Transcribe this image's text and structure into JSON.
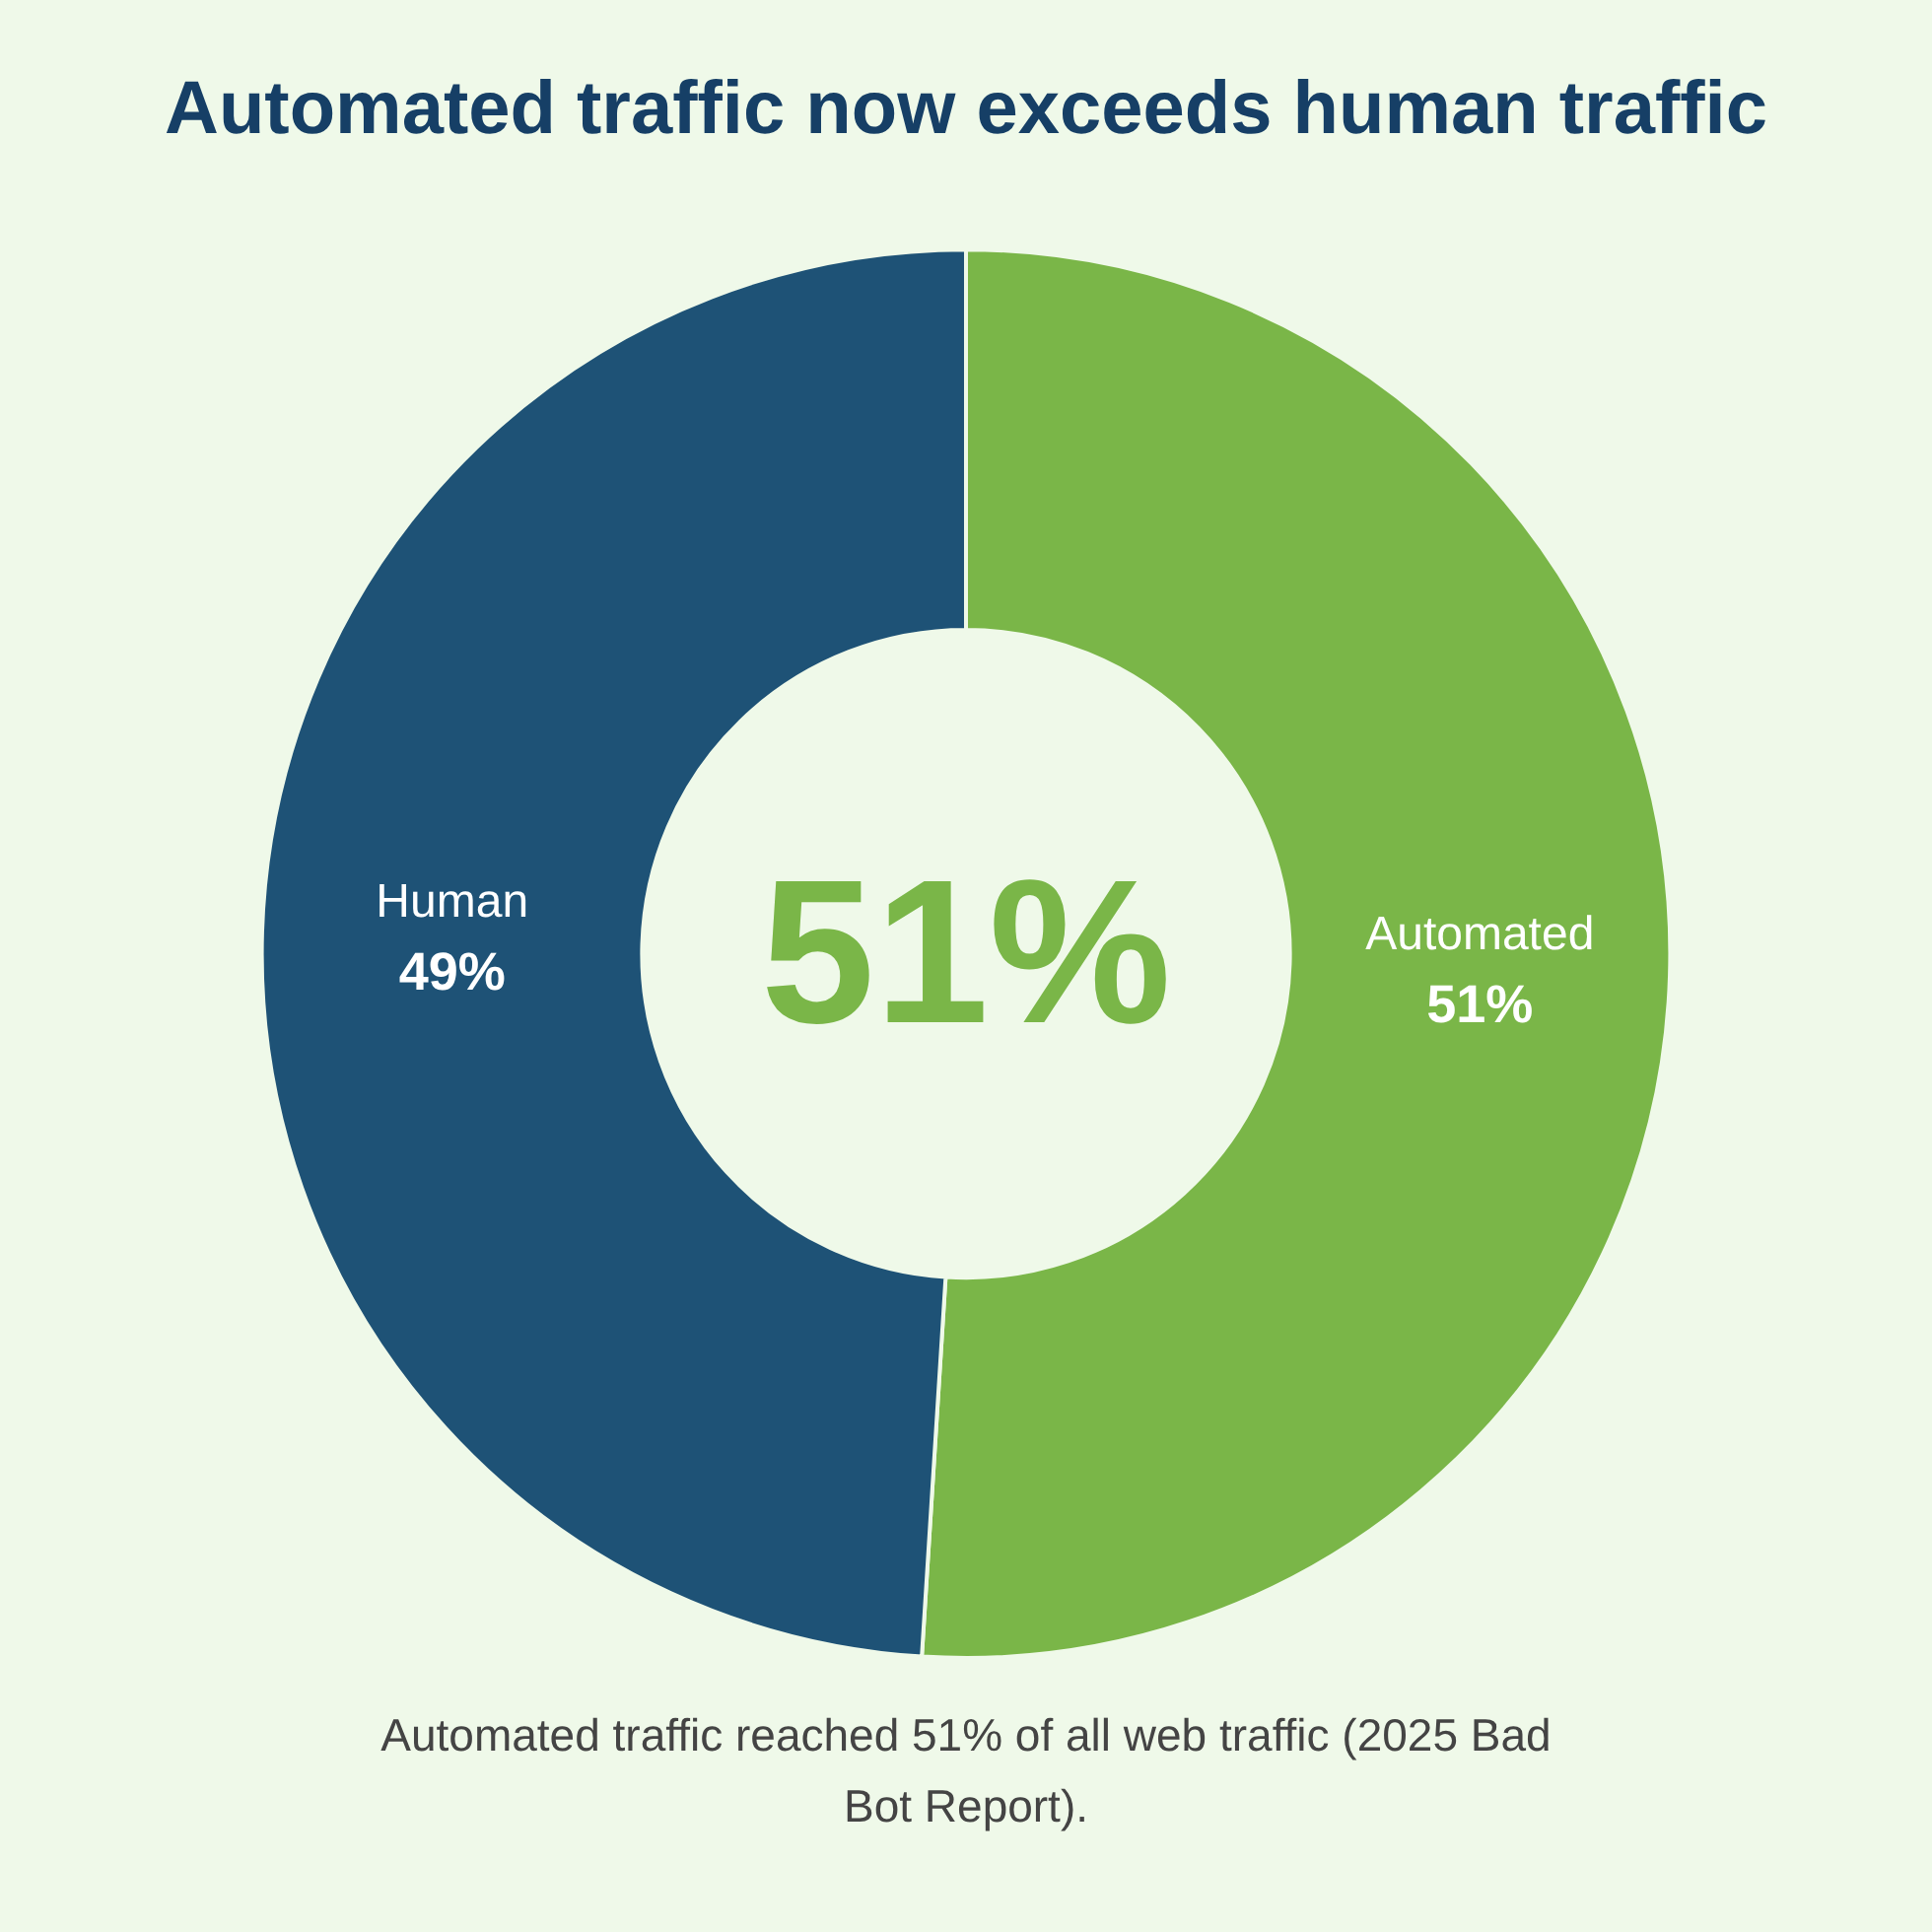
{
  "chart_data": {
    "type": "donut",
    "title": "Automated traffic now exceeds human traffic",
    "categories": [
      "Automated",
      "Human"
    ],
    "values": [
      51,
      49
    ],
    "colors": [
      "#7ab648",
      "#1e5276"
    ],
    "value_labels": [
      "51%",
      "49%"
    ],
    "legend": false,
    "annotations": [
      "51%",
      "Automated traffic reached 51% of all web traffic (2025 Bad Bot Report)."
    ]
  }
}
